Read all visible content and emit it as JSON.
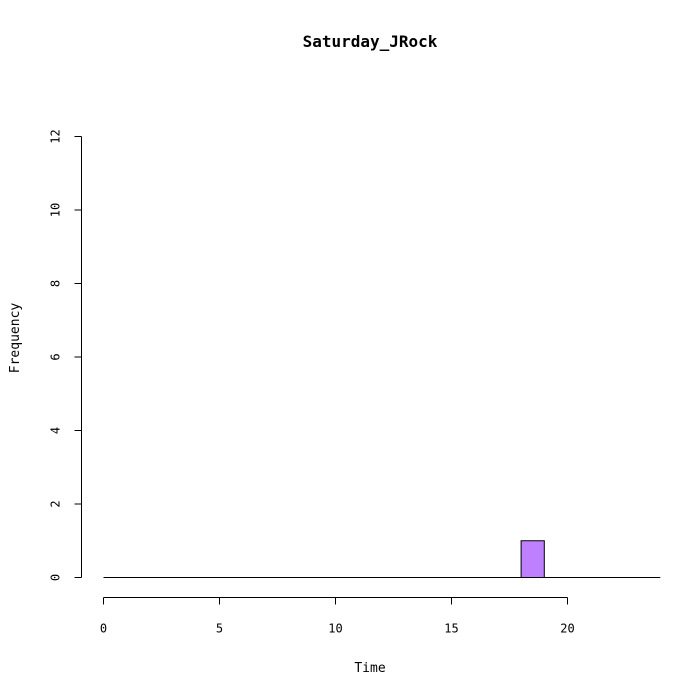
{
  "chart_data": {
    "type": "bar",
    "title": "Saturday_JRock",
    "xlabel": "Time",
    "ylabel": "Frequency",
    "bin_width": 1,
    "bins": [
      {
        "start": 0,
        "end": 1,
        "count": 0
      },
      {
        "start": 1,
        "end": 2,
        "count": 0
      },
      {
        "start": 2,
        "end": 3,
        "count": 0
      },
      {
        "start": 3,
        "end": 4,
        "count": 0
      },
      {
        "start": 4,
        "end": 5,
        "count": 0
      },
      {
        "start": 5,
        "end": 6,
        "count": 0
      },
      {
        "start": 6,
        "end": 7,
        "count": 0
      },
      {
        "start": 7,
        "end": 8,
        "count": 0
      },
      {
        "start": 8,
        "end": 9,
        "count": 0
      },
      {
        "start": 9,
        "end": 10,
        "count": 0
      },
      {
        "start": 10,
        "end": 11,
        "count": 0
      },
      {
        "start": 11,
        "end": 12,
        "count": 0
      },
      {
        "start": 12,
        "end": 13,
        "count": 0
      },
      {
        "start": 13,
        "end": 14,
        "count": 0
      },
      {
        "start": 14,
        "end": 15,
        "count": 0
      },
      {
        "start": 15,
        "end": 16,
        "count": 0
      },
      {
        "start": 16,
        "end": 17,
        "count": 0
      },
      {
        "start": 17,
        "end": 18,
        "count": 0
      },
      {
        "start": 18,
        "end": 19,
        "count": 1
      },
      {
        "start": 19,
        "end": 20,
        "count": 0
      },
      {
        "start": 20,
        "end": 21,
        "count": 0
      },
      {
        "start": 21,
        "end": 22,
        "count": 0
      },
      {
        "start": 22,
        "end": 23,
        "count": 0
      },
      {
        "start": 23,
        "end": 24,
        "count": 0
      }
    ],
    "xlim": [
      0,
      24
    ],
    "ylim": [
      0,
      12
    ],
    "x_ticks": [
      0,
      5,
      10,
      15,
      20
    ],
    "x_tick_labels": [
      "0",
      "5",
      "10",
      "15",
      "20"
    ],
    "y_ticks": [
      0,
      2,
      4,
      6,
      8,
      10,
      12
    ],
    "y_tick_labels": [
      "0",
      "2",
      "4",
      "6",
      "8",
      "10",
      "12"
    ],
    "grid": false,
    "legend": "none",
    "bar_color": "#bf80ff",
    "bar_edge_color": "#000000"
  }
}
